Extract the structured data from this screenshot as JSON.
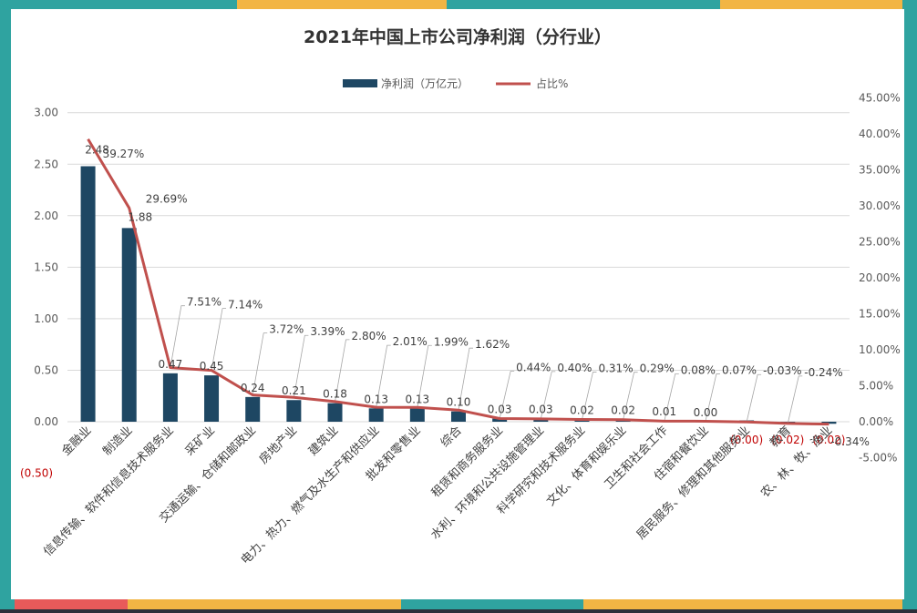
{
  "chart_data": {
    "type": "bar+line",
    "title": "2021年中国上市公司净利润（分行业）",
    "legend_position": "top",
    "legend": [
      "净利润（万亿元）",
      "占比%"
    ],
    "categories": [
      "金融业",
      "制造业",
      "信息传输、软件和信息技术服务业",
      "采矿业",
      "交通运输、仓储和邮政业",
      "房地产业",
      "建筑业",
      "电力、热力、燃气及水生产和供应业",
      "批发和零售业",
      "综合",
      "租赁和商务服务业",
      "水利、环境和公共设施管理业",
      "科学研究和技术服务业",
      "文化、体育和娱乐业",
      "卫生和社会工作",
      "住宿和餐饮业",
      "居民服务、修理和其他服务业",
      "教育",
      "农、林、牧、渔业"
    ],
    "series": [
      {
        "name": "净利润（万亿元）",
        "type": "bar",
        "axis": "left",
        "color": "#1e4763",
        "values": [
          2.48,
          1.88,
          0.47,
          0.45,
          0.24,
          0.21,
          0.18,
          0.13,
          0.13,
          0.1,
          0.03,
          0.03,
          0.02,
          0.02,
          0.01,
          0.0,
          -0.0,
          -0.02,
          -0.02
        ],
        "labels": [
          "2.48",
          "1.88",
          "0.47",
          "0.45",
          "0.24",
          "0.21",
          "0.18",
          "0.13",
          "0.13",
          "0.10",
          "0.03",
          "0.03",
          "0.02",
          "0.02",
          "0.01",
          "0.00",
          "(0.00)",
          "(0.02)",
          "(0.02)"
        ]
      },
      {
        "name": "占比%",
        "type": "line",
        "axis": "right",
        "color": "#c0504d",
        "values": [
          39.27,
          29.69,
          7.51,
          7.14,
          3.72,
          3.39,
          2.8,
          2.01,
          1.99,
          1.62,
          0.44,
          0.4,
          0.31,
          0.29,
          0.08,
          0.07,
          -0.03,
          -0.24,
          -0.34
        ],
        "labels": [
          "39.27%",
          "29.69%",
          "7.51%",
          "7.14%",
          "3.72%",
          "3.39%",
          "2.80%",
          "2.01%",
          "1.99%",
          "1.62%",
          "0.44%",
          "0.40%",
          "0.31%",
          "0.29%",
          "0.08%",
          "0.07%",
          "-0.03%",
          "-0.24%",
          "-0.34%"
        ]
      }
    ],
    "y_left": {
      "ylim": [
        -0.5,
        3.0
      ],
      "ticks": [
        "(0.50)",
        "0.00",
        "0.50",
        "1.00",
        "1.50",
        "2.00",
        "2.50",
        "3.00"
      ]
    },
    "y_right": {
      "ylim": [
        -5,
        45
      ],
      "ticks": [
        "-5.00%",
        "0.00%",
        "5.00%",
        "10.00%",
        "15.00%",
        "20.00%",
        "25.00%",
        "30.00%",
        "35.00%",
        "40.00%",
        "45.00%"
      ]
    },
    "grid": true,
    "colors": {
      "bar": "#1e4763",
      "line": "#c0504d",
      "negative_label": "#c00000",
      "grid": "#d9d9d9"
    }
  }
}
